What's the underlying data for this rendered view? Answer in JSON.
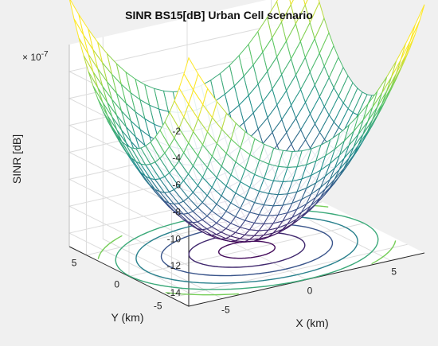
{
  "chart_data": {
    "type": "surface",
    "title": "SINR BS15[dB] Urban Cell scenario",
    "xlabel": "X (km)",
    "ylabel": "Y (km)",
    "zlabel": "SINR [dB]",
    "z_exponent_label": "× 10",
    "z_exponent_power": "-7",
    "xlim": [
      -7,
      7
    ],
    "ylim": [
      -7,
      7
    ],
    "zlim": [
      -15,
      0
    ],
    "x_ticks": [
      "-5",
      "0",
      "5"
    ],
    "y_ticks": [
      "-5",
      "0",
      "5"
    ],
    "z_ticks": [
      "-2",
      "-4",
      "-6",
      "-8",
      "-10",
      "-12",
      "-14"
    ],
    "surface_model": "z = -14.2 + (x^2 + y^2) * 0.18 (scaled by 1e-7)",
    "min_point": {
      "x": 0,
      "y": 0,
      "z": -14.2
    },
    "grid_cells": 25,
    "contour_levels": [
      -13.8,
      -12.5,
      -10.5,
      -8.0,
      -5.5,
      -3.0
    ],
    "colormap": [
      "#440154",
      "#3b528b",
      "#21908d",
      "#5dc963",
      "#fde725"
    ],
    "grid": true,
    "legend": "none"
  }
}
